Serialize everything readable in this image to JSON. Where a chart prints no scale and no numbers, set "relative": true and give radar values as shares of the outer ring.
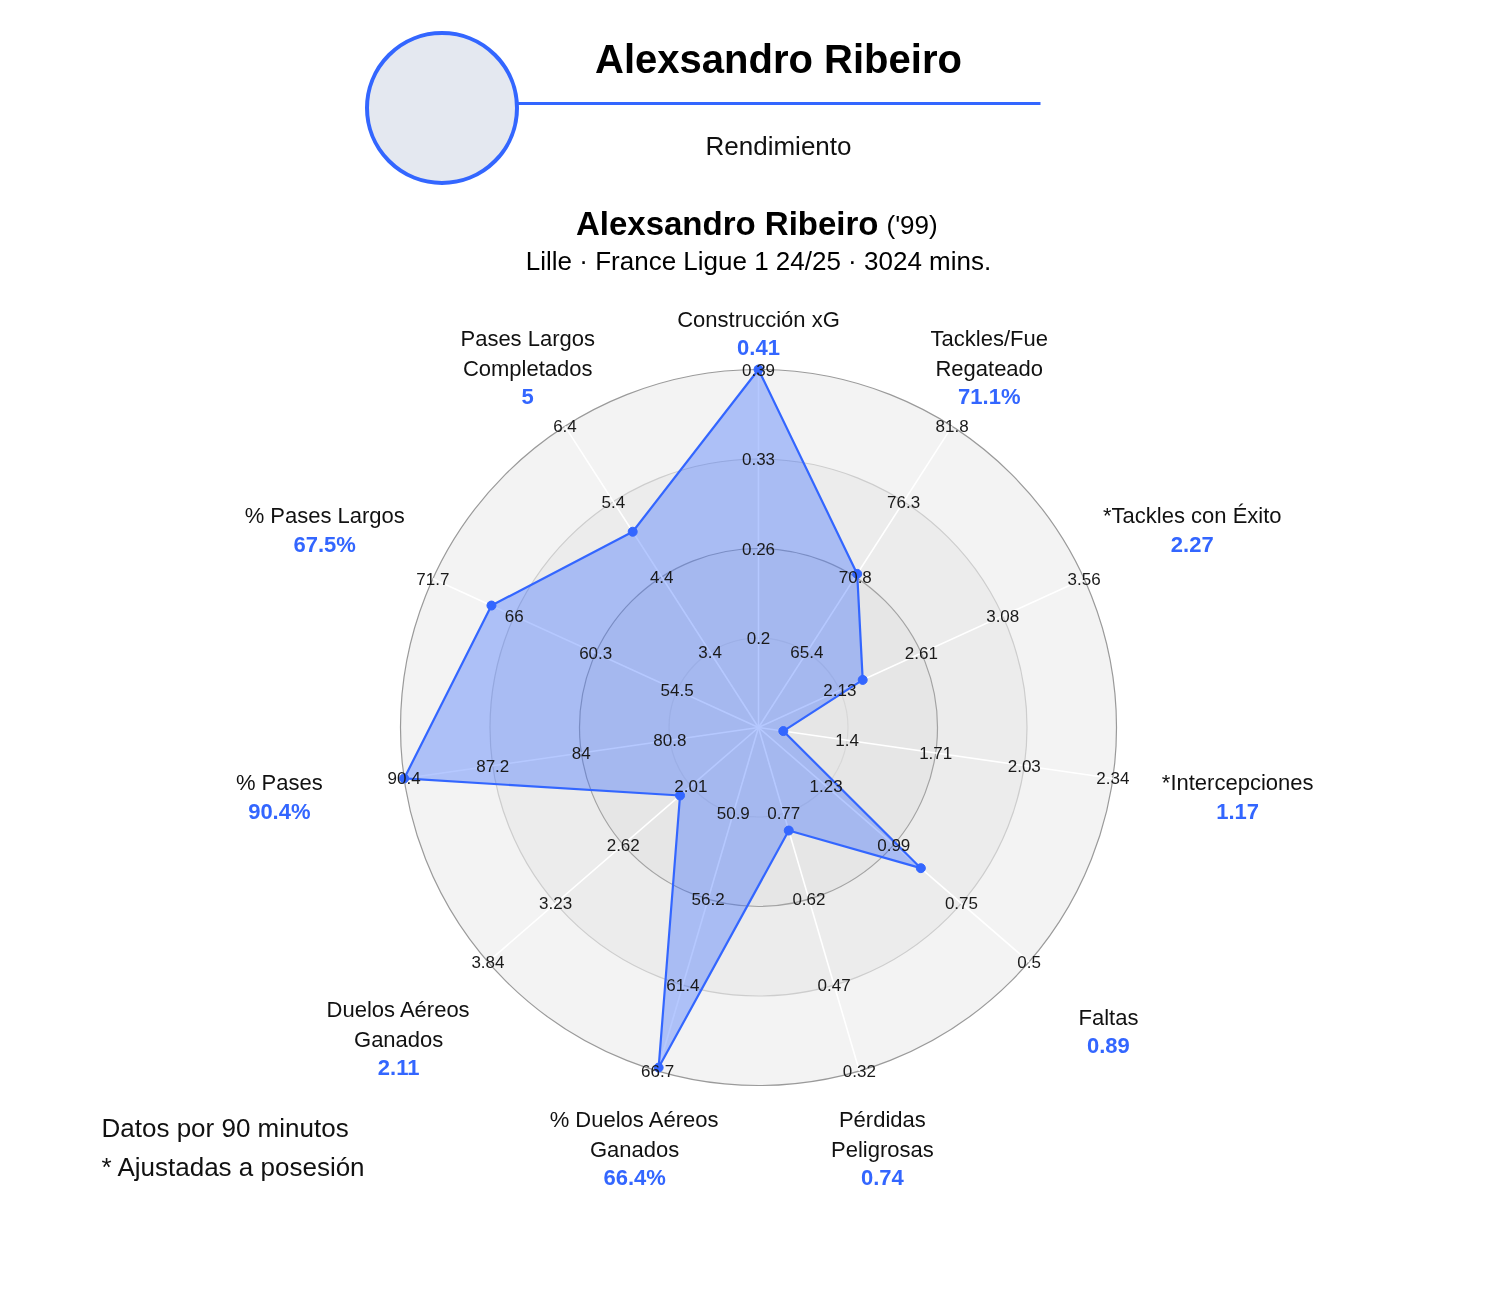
{
  "chart_data": {
    "type": "radar",
    "title": "Alexsandro Ribeiro",
    "subtitle": "Rendimiento",
    "categories": [
      "Construcción xG",
      "Tackles/Fue\nRegateado",
      "*Tackles con Éxito",
      "*Intercepciones",
      "Faltas",
      "Pérdidas\nPeligrosas",
      "% Duelos Aéreos\nGanados",
      "Duelos Aéreos\nGanados",
      "% Pases",
      "% Pases Largos",
      "Pases Largos\nCompletados"
    ],
    "values": [
      1.0,
      0.51,
      0.32,
      0.07,
      0.6,
      0.3,
      0.99,
      0.29,
      1.0,
      0.82,
      0.65
    ],
    "color": "#3366ff",
    "relative": true,
    "grid": true,
    "marker": "circle",
    "annotations": [
      "Alexsandro Ribeiro",
      "('99)",
      "Lille · France Ligue 1 24/25 · 3024 mins.",
      "0.41",
      "71.1%",
      "2.27",
      "1.17",
      "0.89",
      "0.74",
      "66.4%",
      "2.11",
      "90.4%",
      "67.5%",
      "5",
      "0.2",
      "0.26",
      "0.33",
      "0.39",
      "65.4",
      "70.8",
      "76.3",
      "81.8",
      "2.13",
      "2.61",
      "3.08",
      "3.56",
      "1.4",
      "1.71",
      "2.03",
      "2.34",
      "1.23",
      "0.99",
      "0.75",
      "0.5",
      "0.77",
      "0.62",
      "0.47",
      "0.32",
      "50.9",
      "56.2",
      "61.4",
      "66.7",
      "2.01",
      "2.62",
      "3.23",
      "3.84",
      "80.8",
      "84",
      "87.2",
      "90.4",
      "54.5",
      "60.3",
      "66",
      "71.7",
      "3.4",
      "4.4",
      "5.4",
      "6.4",
      "Datos por 90 minutos",
      "* Ajustadas a posesión"
    ]
  }
}
